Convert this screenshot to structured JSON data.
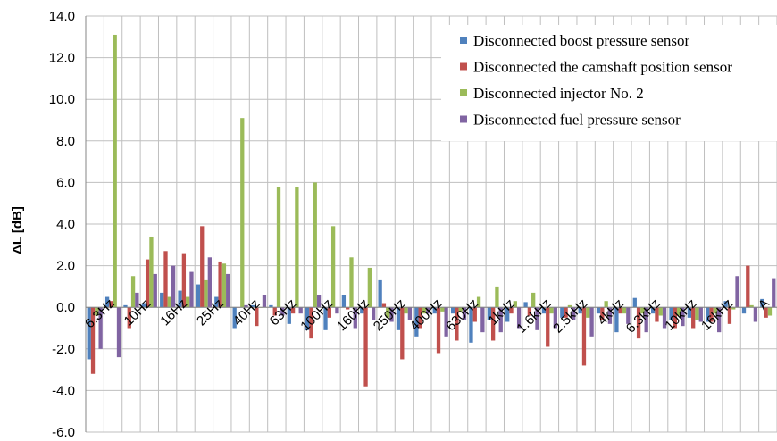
{
  "chart_data": {
    "type": "bar",
    "title": "",
    "xlabel": "",
    "ylabel": "ΔL [dB]",
    "ylim": [
      -6,
      14
    ],
    "ytick_step": 2,
    "ytick_labels": [
      "-6.0",
      "-4.0",
      "-2.0",
      "0.0",
      "2.0",
      "4.0",
      "6.0",
      "8.0",
      "10.0",
      "12.0",
      "14.0"
    ],
    "grid": true,
    "legend_position": "top-right",
    "categories": [
      "6.3Hz",
      "8Hz",
      "10Hz",
      "12.5Hz",
      "16Hz",
      "20Hz",
      "25Hz",
      "31.5Hz",
      "40Hz",
      "50Hz",
      "63Hz",
      "80Hz",
      "100Hz",
      "125Hz",
      "160Hz",
      "200Hz",
      "250Hz",
      "315Hz",
      "400Hz",
      "500Hz",
      "630Hz",
      "800Hz",
      "1kHz",
      "1.25kHz",
      "1.6kHz",
      "2kHz",
      "2.5kHz",
      "3.15kHz",
      "4kHz",
      "5kHz",
      "6.3kHz",
      "8kHz",
      "10kHz",
      "12.5kHz",
      "16kHz",
      "20kHz",
      "A",
      "Lin"
    ],
    "category_labels_shown": [
      "6.3Hz",
      "",
      "10Hz",
      "",
      "16Hz",
      "",
      "25Hz",
      "",
      "40Hz",
      "",
      "63Hz",
      "",
      "100Hz",
      "",
      "160Hz",
      "",
      "250Hz",
      "",
      "400Hz",
      "",
      "630Hz",
      "",
      "1kHz",
      "",
      "1.6kHz",
      "",
      "2.5kHz",
      "",
      "4kHz",
      "",
      "6.3kHz",
      "",
      "10kHz",
      "",
      "16kHz",
      "",
      "A",
      ""
    ],
    "series": [
      {
        "name": "Disconnected boost pressure sensor",
        "color": "#4F81BD",
        "values": [
          -2.5,
          0.5,
          0.1,
          0.2,
          0.7,
          0.8,
          1.1,
          0.5,
          -1.0,
          0.1,
          0.1,
          -0.8,
          -1.1,
          -1.1,
          0.6,
          -0.3,
          1.3,
          -1.1,
          -1.4,
          -0.3,
          -0.3,
          -1.7,
          -0.6,
          -0.7,
          0.25,
          -0.3,
          -0.5,
          -0.3,
          -0.3,
          -1.2,
          0.45,
          -0.3,
          -0.6,
          -0.5,
          -0.7,
          0.3,
          -0.3,
          0.4
        ]
      },
      {
        "name": "Disconnected the camshaft position sensor",
        "color": "#C0504D",
        "values": [
          -3.2,
          0.3,
          -1.0,
          2.3,
          2.7,
          2.6,
          3.9,
          2.2,
          0.0,
          -0.9,
          -0.4,
          -0.3,
          -1.5,
          -0.5,
          -0.1,
          -3.8,
          0.2,
          -2.5,
          -1.0,
          -2.2,
          -1.6,
          -0.7,
          -1.6,
          -0.3,
          -0.4,
          -1.9,
          -0.5,
          -2.8,
          -0.6,
          -0.3,
          -1.5,
          -0.7,
          -1.0,
          -1.0,
          -0.7,
          -0.8,
          2.0,
          -0.5
        ]
      },
      {
        "name": "Disconnected injector No. 2",
        "color": "#9BBB59",
        "values": [
          -0.4,
          13.1,
          1.5,
          3.4,
          0.5,
          0.5,
          1.3,
          2.1,
          9.1,
          0.0,
          5.8,
          5.8,
          6.0,
          3.9,
          2.4,
          1.9,
          -0.5,
          -0.3,
          -0.3,
          -0.2,
          -0.2,
          0.5,
          1.0,
          0.3,
          0.7,
          -0.3,
          0.1,
          -0.5,
          0.3,
          -0.3,
          -0.3,
          -0.4,
          -0.4,
          -0.6,
          -0.3,
          -0.1,
          0.1,
          -0.4
        ]
      },
      {
        "name": "Disconnected  fuel pressure sensor",
        "color": "#8064A2",
        "values": [
          -2.0,
          -2.4,
          0.7,
          1.6,
          2.0,
          1.7,
          2.4,
          1.6,
          0.1,
          0.6,
          -0.4,
          -0.3,
          0.6,
          -0.3,
          -1.0,
          -0.6,
          -0.7,
          -0.6,
          -0.3,
          -1.4,
          -0.6,
          -1.2,
          -1.2,
          -1.0,
          -1.1,
          -1.0,
          -0.6,
          -1.4,
          -0.8,
          -0.8,
          -1.2,
          -1.0,
          -0.9,
          -0.7,
          -1.2,
          1.5,
          -0.7,
          1.4
        ]
      }
    ]
  }
}
